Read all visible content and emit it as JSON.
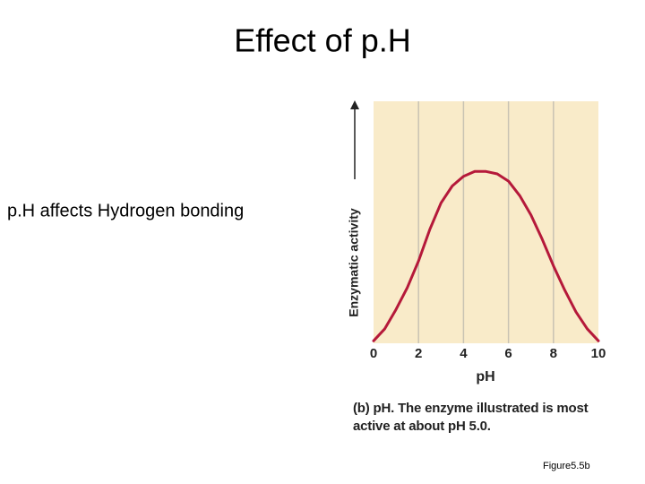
{
  "title": "Effect of p.H",
  "bullet": "p.H affects Hydrogen bonding",
  "figure_label": "Figure5.5b",
  "chart_data": {
    "type": "line",
    "x": [
      0,
      0.5,
      1,
      1.5,
      2,
      2.5,
      3,
      3.5,
      4,
      4.5,
      5,
      5.5,
      6,
      6.5,
      7,
      7.5,
      8,
      8.5,
      9,
      9.5,
      10
    ],
    "values": [
      0.01,
      0.06,
      0.14,
      0.23,
      0.34,
      0.47,
      0.58,
      0.65,
      0.69,
      0.71,
      0.71,
      0.7,
      0.67,
      0.61,
      0.53,
      0.43,
      0.32,
      0.22,
      0.13,
      0.06,
      0.01
    ],
    "color": "#b5193a",
    "xlim": [
      0,
      10
    ],
    "xticks": [
      0,
      2,
      4,
      6,
      8,
      10
    ],
    "ylim": [
      0,
      1
    ],
    "grid": true,
    "xlabel": "pH",
    "ylabel": "Enzymatic activity",
    "caption_label": "(b) pH.",
    "caption": "The enzyme illustrated is most active at about pH 5.0."
  }
}
